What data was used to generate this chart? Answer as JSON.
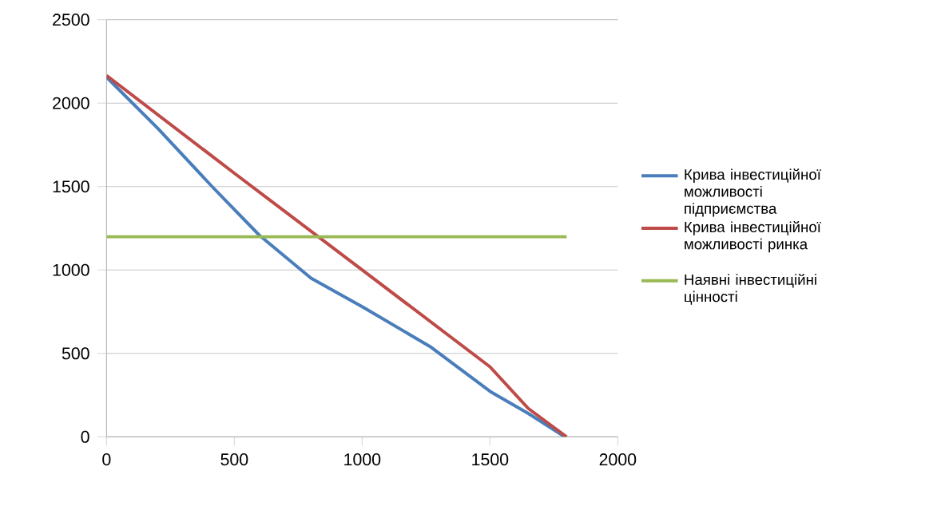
{
  "chart_data": {
    "type": "line",
    "xlim": [
      0,
      2000
    ],
    "ylim": [
      0,
      2500
    ],
    "xticks": [
      0,
      500,
      1000,
      1500,
      2000
    ],
    "yticks": [
      0,
      500,
      1000,
      1500,
      2000,
      2500
    ],
    "grid": "y",
    "legend": "right",
    "series": [
      {
        "name": "Крива інвестиційної можливості підприємства",
        "color": "#4a7ebb",
        "x": [
          0,
          200,
          416,
          598,
          800,
          1003,
          1270,
          1505,
          1650,
          1793
        ],
        "values": [
          2155,
          1850,
          1495,
          1208,
          951,
          778,
          537,
          268,
          140,
          0
        ]
      },
      {
        "name": "Крива інвестиційної можливості ринка",
        "color": "#be4b48",
        "x": [
          0,
          500,
          1003,
          1500,
          1650,
          1800
        ],
        "values": [
          2166,
          1580,
          997,
          420,
          170,
          0
        ]
      },
      {
        "name": "Наявні інвестиційні цінності",
        "color": "#98b954",
        "x": [
          0,
          1800
        ],
        "values": [
          1200,
          1200
        ]
      }
    ]
  }
}
